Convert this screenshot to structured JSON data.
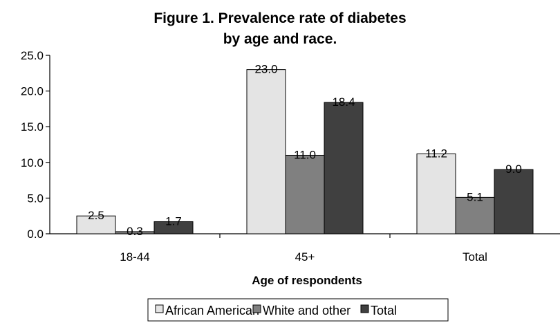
{
  "chart_data": {
    "type": "bar",
    "title_lines": [
      "Figure 1.  Prevalence rate of diabetes",
      "by age and race."
    ],
    "xlabel": "Age of respondents",
    "ylabel": "",
    "categories": [
      "18-44",
      "45+",
      "Total"
    ],
    "series": [
      {
        "name": "African American",
        "values": [
          2.5,
          23.0,
          11.2
        ],
        "labels": [
          "2.5",
          "23.0",
          "11.2"
        ],
        "color": "#e4e4e4"
      },
      {
        "name": "White and other",
        "values": [
          0.3,
          11.0,
          5.1
        ],
        "labels": [
          "0.3",
          "11.0",
          "5.1"
        ],
        "color": "#808080"
      },
      {
        "name": "Total",
        "values": [
          1.7,
          18.4,
          9.0
        ],
        "labels": [
          "1.7",
          "18.4",
          "9.0"
        ],
        "color": "#404040"
      }
    ],
    "ylim": [
      0,
      25
    ],
    "yticks": [
      0,
      5,
      10,
      15,
      20,
      25
    ],
    "ytick_labels": [
      "0.0",
      "5.0",
      "10.0",
      "15.0",
      "20.0",
      "25.0"
    ],
    "grid": false,
    "legend_position": "bottom"
  }
}
